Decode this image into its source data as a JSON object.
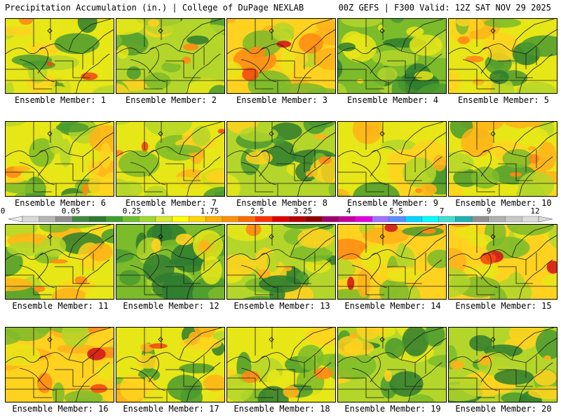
{
  "header": {
    "left": "Precipitation Accumulation (in.) | College of DuPage NEXLAB",
    "right": "00Z GEFS | F300 Valid: 12Z SAT NOV 29 2025"
  },
  "panels": [
    {
      "member": 1,
      "label": "Ensemble Member: 1",
      "level": 0.45
    },
    {
      "member": 2,
      "label": "Ensemble Member: 2",
      "level": 0.25
    },
    {
      "member": 3,
      "label": "Ensemble Member: 3",
      "level": 0.7
    },
    {
      "member": 4,
      "label": "Ensemble Member: 4",
      "level": 0.15
    },
    {
      "member": 5,
      "label": "Ensemble Member: 5",
      "level": 0.45
    },
    {
      "member": 6,
      "label": "Ensemble Member: 6",
      "level": 0.55
    },
    {
      "member": 7,
      "label": "Ensemble Member: 7",
      "level": 0.5
    },
    {
      "member": 8,
      "label": "Ensemble Member: 8",
      "level": 0.3
    },
    {
      "member": 9,
      "label": "Ensemble Member: 9",
      "level": 0.55
    },
    {
      "member": 10,
      "label": "Ensemble Member: 10",
      "level": 0.45
    },
    {
      "member": 11,
      "label": "Ensemble Member: 11",
      "level": 0.55
    },
    {
      "member": 12,
      "label": "Ensemble Member: 12",
      "level": 0.15
    },
    {
      "member": 13,
      "label": "Ensemble Member: 13",
      "level": 0.4
    },
    {
      "member": 14,
      "label": "Ensemble Member: 14",
      "level": 0.6
    },
    {
      "member": 15,
      "label": "Ensemble Member: 15",
      "level": 0.6
    },
    {
      "member": 16,
      "label": "Ensemble Member: 16",
      "level": 0.6
    },
    {
      "member": 17,
      "label": "Ensemble Member: 17",
      "level": 0.5
    },
    {
      "member": 18,
      "label": "Ensemble Member: 18",
      "level": 0.45
    },
    {
      "member": 19,
      "label": "Ensemble Member: 19",
      "level": 0.35
    },
    {
      "member": 20,
      "label": "Ensemble Member: 20",
      "level": 0.25
    }
  ],
  "colorbar": {
    "labels": [
      "0",
      "0.05",
      "0.25",
      "1",
      "1.75",
      "2.5",
      "3.25",
      "4",
      "5.5",
      "7",
      "9",
      "12"
    ],
    "colors": [
      "#d9d9d9",
      "#b5b5b5",
      "#8f8f8f",
      "#3f8a3f",
      "#2f7a2f",
      "#3f9f2f",
      "#6fbf2f",
      "#9fd82f",
      "#d8e82f",
      "#ffff00",
      "#ffd700",
      "#ffb000",
      "#ff9000",
      "#ff6a00",
      "#ff3000",
      "#e00000",
      "#b80000",
      "#900000",
      "#a0006e",
      "#c800a0",
      "#e000e0",
      "#a070ff",
      "#5a8cff",
      "#00d8ff",
      "#00ffff",
      "#40e0d0",
      "#20b0b0",
      "#909090",
      "#b0b0b0",
      "#c8c8c8",
      "#dcdcdc"
    ]
  }
}
